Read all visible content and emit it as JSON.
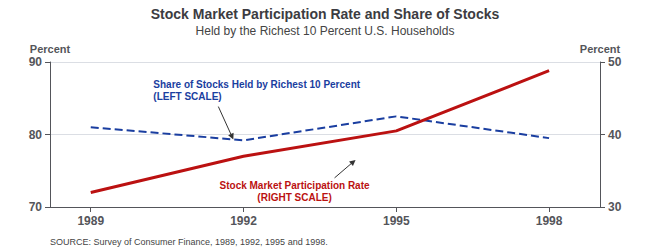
{
  "chart_data": {
    "type": "line",
    "title": "Stock Market Participation Rate and Share of Stocks",
    "subtitle": "Held by the Richest 10 Percent U.S. Households",
    "source": "SOURCE: Survey of Consumer Finance, 1989, 1992, 1995 and 1998.",
    "x": [
      1989,
      1992,
      1995,
      1998
    ],
    "xlim": [
      1988.2,
      1999.0
    ],
    "xticks": [
      1989,
      1992,
      1995,
      1998
    ],
    "ylim": [
      70,
      90
    ],
    "yticks": [
      70,
      80,
      90
    ],
    "y2lim": [
      30,
      50
    ],
    "y2ticks": [
      30,
      40,
      50
    ],
    "ylabel": "Percent",
    "y2label": "Percent",
    "grid": true,
    "series": [
      {
        "name": "Share of Stocks Held by Richest 10 Percent",
        "color": "#1a3ea0",
        "line_style": "dashed",
        "values": [
          81.0,
          79.2,
          82.5,
          79.5
        ]
      },
      {
        "name": "Stock Market Participation Rate",
        "color": "#bb1111",
        "line_style": "solid",
        "axis": "y2",
        "values": [
          32.0,
          37.0,
          40.5,
          48.8
        ]
      }
    ],
    "annotations": [
      {
        "text": "Share of Stocks Held by Richest 10 Percent\n(LEFT SCALE)",
        "x": 1991.8,
        "y": 79.3,
        "color": "#1a3ea0"
      },
      {
        "text": "Stock Market Participation Rate\n(RIGHT SCALE)",
        "x": 1994.2,
        "y": 76.5,
        "color": "#bb1111"
      }
    ]
  }
}
